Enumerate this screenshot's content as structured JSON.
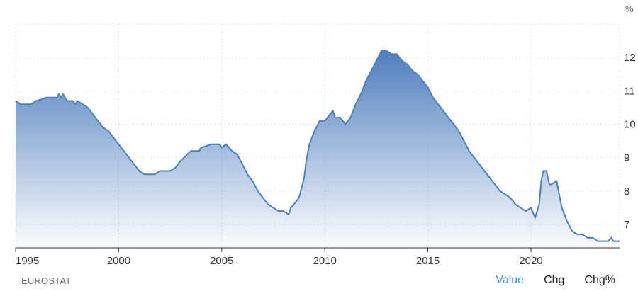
{
  "chart_data": {
    "type": "area",
    "unit": "%",
    "source": "EUROSTAT",
    "ylim": [
      6.3,
      13.0
    ],
    "xlim": [
      1995.0,
      2024.3
    ],
    "yticks": [
      7,
      8,
      9,
      10,
      11,
      12
    ],
    "xticks": [
      1995,
      2000,
      2005,
      2010,
      2015,
      2020
    ],
    "grid": true,
    "color": "#4a7fc1",
    "x": [
      1995.0,
      1995.25,
      1995.75,
      1996.0,
      1996.5,
      1997.0,
      1997.1,
      1997.2,
      1997.3,
      1997.5,
      1997.75,
      1997.9,
      1998.0,
      1998.25,
      1998.5,
      1998.75,
      1999.0,
      1999.25,
      1999.5,
      1999.75,
      2000.0,
      2000.25,
      2000.5,
      2000.75,
      2001.0,
      2001.25,
      2001.5,
      2001.75,
      2002.0,
      2002.5,
      2002.75,
      2003.0,
      2003.5,
      2003.9,
      2004.0,
      2004.5,
      2004.9,
      2005.0,
      2005.2,
      2005.5,
      2005.75,
      2006.0,
      2006.25,
      2006.5,
      2006.75,
      2007.0,
      2007.25,
      2007.5,
      2007.75,
      2008.0,
      2008.25,
      2008.35,
      2008.5,
      2008.75,
      2009.0,
      2009.1,
      2009.25,
      2009.5,
      2009.75,
      2010.0,
      2010.25,
      2010.4,
      2010.5,
      2010.75,
      2011.0,
      2011.25,
      2011.5,
      2011.75,
      2012.0,
      2012.25,
      2012.5,
      2012.75,
      2013.0,
      2013.25,
      2013.5,
      2013.75,
      2014.0,
      2014.25,
      2014.5,
      2014.75,
      2015.0,
      2015.25,
      2015.5,
      2015.75,
      2016.0,
      2016.25,
      2016.5,
      2016.75,
      2017.0,
      2017.25,
      2017.5,
      2017.75,
      2018.0,
      2018.25,
      2018.5,
      2018.75,
      2019.0,
      2019.25,
      2019.5,
      2019.75,
      2020.0,
      2020.2,
      2020.4,
      2020.5,
      2020.6,
      2020.75,
      2020.9,
      2021.0,
      2021.25,
      2021.4,
      2021.5,
      2021.75,
      2022.0,
      2022.25,
      2022.5,
      2022.75,
      2023.0,
      2023.25,
      2023.5,
      2023.75,
      2023.9,
      2024.0,
      2024.3
    ],
    "y": [
      10.7,
      10.6,
      10.6,
      10.7,
      10.8,
      10.8,
      10.9,
      10.8,
      10.9,
      10.7,
      10.7,
      10.6,
      10.7,
      10.6,
      10.5,
      10.3,
      10.1,
      9.9,
      9.8,
      9.6,
      9.4,
      9.2,
      9.0,
      8.8,
      8.6,
      8.5,
      8.5,
      8.5,
      8.6,
      8.6,
      8.7,
      8.9,
      9.2,
      9.2,
      9.3,
      9.4,
      9.4,
      9.3,
      9.4,
      9.2,
      9.1,
      8.8,
      8.5,
      8.3,
      8.0,
      7.8,
      7.6,
      7.5,
      7.4,
      7.4,
      7.3,
      7.5,
      7.6,
      7.8,
      8.4,
      8.9,
      9.4,
      9.8,
      10.1,
      10.1,
      10.3,
      10.4,
      10.2,
      10.2,
      10.0,
      10.2,
      10.6,
      10.9,
      11.3,
      11.6,
      11.9,
      12.2,
      12.2,
      12.1,
      12.1,
      11.9,
      11.8,
      11.6,
      11.5,
      11.3,
      11.1,
      10.8,
      10.6,
      10.4,
      10.2,
      10.0,
      9.8,
      9.5,
      9.2,
      9.0,
      8.8,
      8.6,
      8.4,
      8.2,
      8.0,
      7.9,
      7.8,
      7.6,
      7.5,
      7.4,
      7.5,
      7.2,
      7.6,
      8.3,
      8.6,
      8.6,
      8.2,
      8.2,
      8.3,
      7.8,
      7.5,
      7.1,
      6.8,
      6.7,
      6.7,
      6.6,
      6.6,
      6.5,
      6.5,
      6.5,
      6.6,
      6.5,
      6.5
    ]
  },
  "footer": {
    "source_label": "EUROSTAT",
    "tabs": [
      {
        "label": "Value",
        "active": true
      },
      {
        "label": "Chg",
        "active": false
      },
      {
        "label": "Chg%",
        "active": false
      }
    ]
  }
}
